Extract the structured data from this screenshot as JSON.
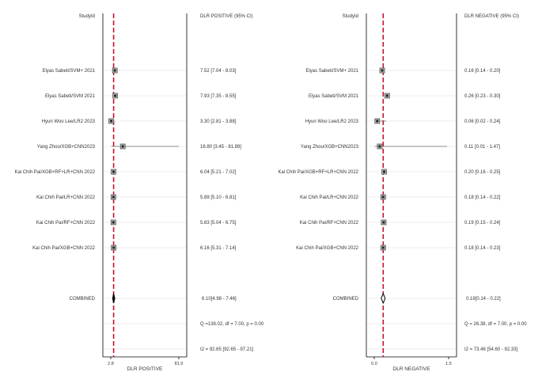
{
  "colors": {
    "null_line": "#c4122f",
    "box": "#555555",
    "ci": "#666666",
    "row_band": "#eeeeee",
    "axis": "#000000"
  },
  "panels": [
    {
      "id": "positive",
      "col_study": "StudyId",
      "col_estimate": "DLR POSITIVE (95% CI)",
      "xlabel": "DLR POSITIVE",
      "ticks": [
        "2.8",
        "81.9"
      ],
      "studies": [
        "Elyas Sabeti/SVM+ 2021",
        "Elyas Sabeti/SVM 2021",
        "Hyun Woo Lee/LR2 2023",
        "Yang Zhou/XGB+CNN2023",
        "Kai Chih Pai/XGB+RF+LR+CNN 2022",
        "Kai Chih Pai/LR+CNN 2022",
        "Kai Chih Pai/RF+CNN 2022",
        "Kai Chih Pai/XGB+CNN 2022"
      ],
      "estimates": [
        "7.52 [7.04 - 8.03]",
        "7.93 [7.35 - 8.55]",
        "3.30 [2.81 - 3.88]",
        "16.80 [3.45 - 81.89]",
        "6.04 [5.21 - 7.02]",
        "5.89 [5.10 - 6.81]",
        "5.83 [5.04 - 6.75]",
        "6.16 [5.31 - 7.14]"
      ],
      "combined_label": "COMBINED",
      "combined_estimate": "6.10[4.98 - 7.46]",
      "q_stat": "Q =138.02, df = 7.00, p =  0.00",
      "i2_stat": "I2 = 92.65 [92.65 - 97.21]"
    },
    {
      "id": "negative",
      "col_study": "StudyId",
      "col_estimate": "DLR NEGATIVE (95% CI)",
      "xlabel": "DLR NEGATIVE",
      "ticks": [
        "0.0",
        "1.5"
      ],
      "studies": [
        "Elyas Sabeti/SVM+ 2021",
        "Elyas Sabeti/SVM 2021",
        "Hyun Woo Lee/LR2 2023",
        "Yang Zhou/XGB+CNN2023",
        "Kai Chih Pai/XGB+RF+LR+CNN 2022",
        "Kai Chih Pai/LR+CNN 2022",
        "Kai Chih Pai/RF+CNN 2022",
        "Kai Chih Pai/XGB+CNN 2022"
      ],
      "estimates": [
        "0.16 [0.14 - 0.20]",
        "0.26 [0.23 - 0.30]",
        "0.06 [0.02 - 0.24]",
        "0.11 [0.01 - 1.47]",
        "0.20 [0.16 - 0.25]",
        "0.18 [0.14 - 0.22]",
        "0.19 [0.15 - 0.24]",
        "0.18 [0.14 - 0.23]"
      ],
      "combined_label": "COMBINED",
      "combined_estimate": "0.18[0.14 - 0.22]",
      "q_stat": "Q = 26.38, df = 7.00, p =  0.00",
      "i2_stat": "I2 = 73.46 [54.60 - 92.33]"
    }
  ],
  "chart_data": [
    {
      "type": "forest",
      "xlabel": "DLR POSITIVE",
      "xlim": [
        2.8,
        81.9
      ],
      "ticks": [
        2.8,
        81.9
      ],
      "null_line": 6.1,
      "null_line_style": "dashed",
      "series": [
        {
          "study": "Elyas Sabeti/SVM+ 2021",
          "est": 7.52,
          "lo": 7.04,
          "hi": 8.03
        },
        {
          "study": "Elyas Sabeti/SVM 2021",
          "est": 7.93,
          "lo": 7.35,
          "hi": 8.55
        },
        {
          "study": "Hyun Woo Lee/LR2 2023",
          "est": 3.3,
          "lo": 2.81,
          "hi": 3.88
        },
        {
          "study": "Yang Zhou/XGB+CNN2023",
          "est": 16.8,
          "lo": 3.45,
          "hi": 81.89
        },
        {
          "study": "Kai Chih Pai/XGB+RF+LR+CNN 2022",
          "est": 6.04,
          "lo": 5.21,
          "hi": 7.02
        },
        {
          "study": "Kai Chih Pai/LR+CNN 2022",
          "est": 5.89,
          "lo": 5.1,
          "hi": 6.81
        },
        {
          "study": "Kai Chih Pai/RF+CNN 2022",
          "est": 5.83,
          "lo": 5.04,
          "hi": 6.75
        },
        {
          "study": "Kai Chih Pai/XGB+CNN 2022",
          "est": 6.16,
          "lo": 5.31,
          "hi": 7.14
        }
      ],
      "combined": {
        "est": 6.1,
        "lo": 4.98,
        "hi": 7.46
      }
    },
    {
      "type": "forest",
      "xlabel": "DLR NEGATIVE",
      "xlim": [
        0.0,
        1.5
      ],
      "ticks": [
        0.0,
        1.5
      ],
      "null_line": 0.18,
      "null_line_style": "dashed",
      "series": [
        {
          "study": "Elyas Sabeti/SVM+ 2021",
          "est": 0.16,
          "lo": 0.14,
          "hi": 0.2
        },
        {
          "study": "Elyas Sabeti/SVM 2021",
          "est": 0.26,
          "lo": 0.23,
          "hi": 0.3
        },
        {
          "study": "Hyun Woo Lee/LR2 2023",
          "est": 0.06,
          "lo": 0.02,
          "hi": 0.24
        },
        {
          "study": "Yang Zhou/XGB+CNN2023",
          "est": 0.11,
          "lo": 0.01,
          "hi": 1.47
        },
        {
          "study": "Kai Chih Pai/XGB+RF+LR+CNN 2022",
          "est": 0.2,
          "lo": 0.16,
          "hi": 0.25
        },
        {
          "study": "Kai Chih Pai/LR+CNN 2022",
          "est": 0.18,
          "lo": 0.14,
          "hi": 0.22
        },
        {
          "study": "Kai Chih Pai/RF+CNN 2022",
          "est": 0.19,
          "lo": 0.15,
          "hi": 0.24
        },
        {
          "study": "Kai Chih Pai/XGB+CNN 2022",
          "est": 0.18,
          "lo": 0.14,
          "hi": 0.23
        }
      ],
      "combined": {
        "est": 0.18,
        "lo": 0.14,
        "hi": 0.22
      }
    }
  ]
}
